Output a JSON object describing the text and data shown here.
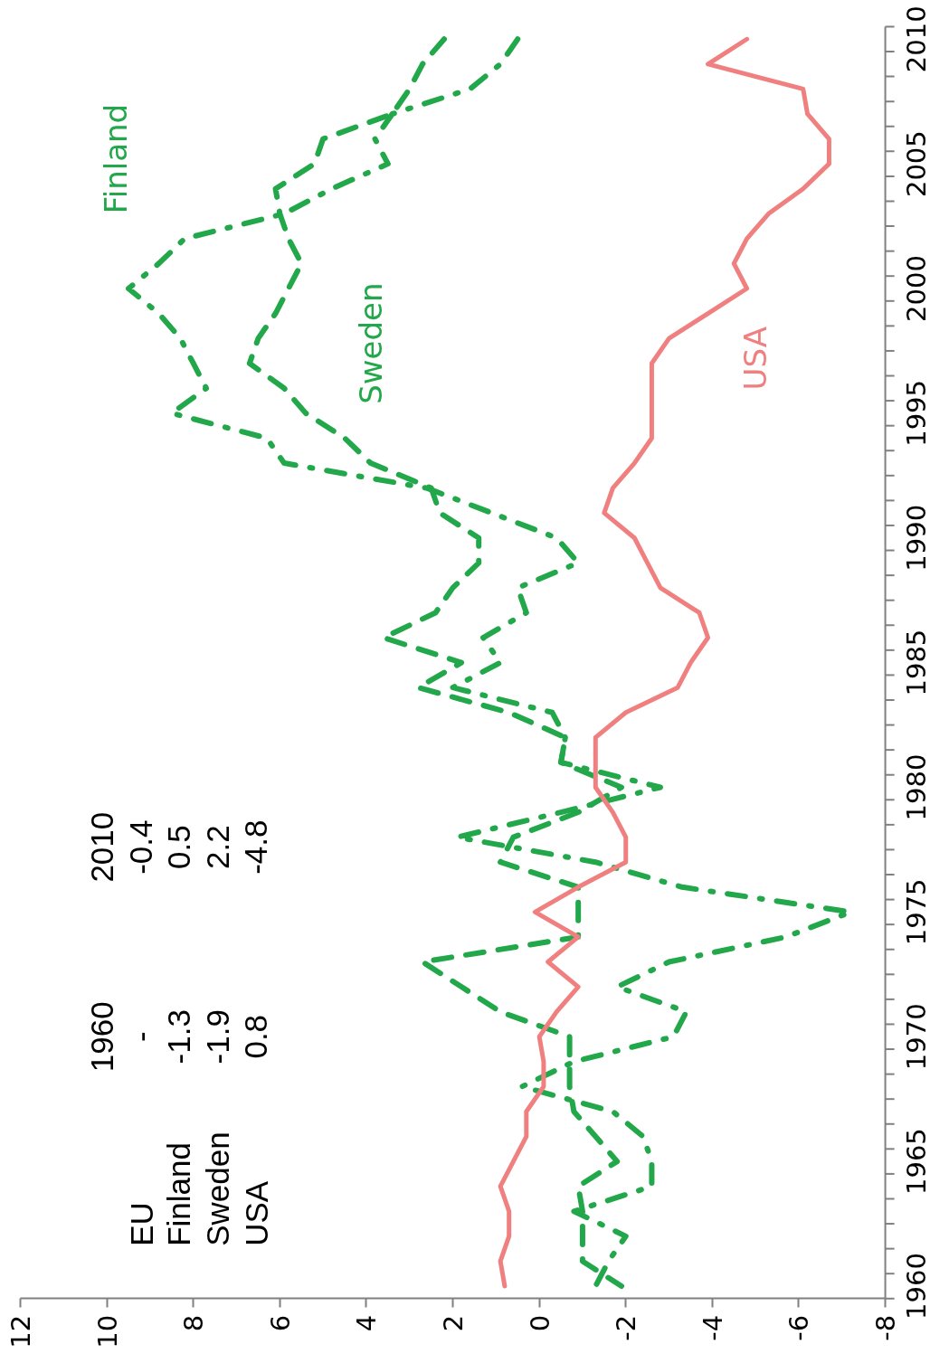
{
  "chart_data": {
    "type": "line",
    "orientation": "horizontal",
    "categories": [
      "2010",
      null,
      null,
      null,
      null,
      "2005",
      null,
      null,
      null,
      null,
      "2000",
      null,
      null,
      null,
      null,
      "1995",
      null,
      null,
      null,
      null,
      "1990",
      null,
      null,
      null,
      null,
      "1985",
      null,
      null,
      null,
      null,
      "1980",
      null,
      null,
      null,
      null,
      "1975",
      null,
      null,
      null,
      null,
      "1970",
      null,
      null,
      null,
      null,
      "1965",
      null,
      null,
      null,
      null,
      "1960"
    ],
    "xlim": [
      12,
      -8
    ],
    "xticks": [
      12,
      10,
      8,
      6,
      4,
      2,
      0,
      -2,
      -4,
      -6,
      -8
    ],
    "series": [
      {
        "name": "Finland",
        "color": "#22a84a",
        "line_style": "dashdot",
        "values": [
          0.5,
          0.9,
          1.6,
          3.4,
          3.8,
          3.5,
          4.8,
          5.9,
          8.2,
          8.8,
          9.5,
          8.8,
          8.3,
          8.0,
          7.7,
          8.5,
          6.3,
          5.9,
          2.6,
          1.1,
          -0.4,
          -0.9,
          0.5,
          0.3,
          1.3,
          0.9,
          2.0,
          -0.3,
          -0.6,
          -0.5,
          -2.8,
          -0.5,
          1.9,
          -1.3,
          -3.3,
          -7.2,
          -5.7,
          -3.0,
          -1.8,
          -3.4,
          -3.1,
          -0.8,
          0.4,
          -1.7,
          -2.4,
          -2.6,
          -2.6,
          -0.8,
          -2.0,
          -1.6,
          -1.3
        ]
      },
      {
        "name": "Sweden",
        "color": "#22a84a",
        "line_style": "dashed",
        "values": [
          2.2,
          2.7,
          3.0,
          3.4,
          5.0,
          5.2,
          6.1,
          6.0,
          5.8,
          5.5,
          5.8,
          6.1,
          6.5,
          6.7,
          5.9,
          5.4,
          4.5,
          3.9,
          2.5,
          2.3,
          1.4,
          1.4,
          2.0,
          2.4,
          3.6,
          1.8,
          2.8,
          0.7,
          -0.6,
          -0.5,
          -1.9,
          -0.9,
          0.6,
          0.9,
          -0.9,
          -0.9,
          -0.9,
          2.7,
          1.8,
          0.9,
          -0.7,
          -0.7,
          -0.7,
          -0.8,
          -1.3,
          -1.8,
          -0.9,
          -1.0,
          -1.0,
          -1.0,
          -1.9
        ]
      },
      {
        "name": "USA",
        "color": "#f08080",
        "line_style": "solid",
        "values": [
          -4.8,
          -3.9,
          -6.1,
          -6.2,
          -6.7,
          -6.7,
          -6.1,
          -5.3,
          -4.8,
          -4.5,
          -4.8,
          -3.9,
          -3.0,
          -2.6,
          -2.6,
          -2.6,
          -2.6,
          -2.2,
          -1.7,
          -1.5,
          -2.2,
          -2.5,
          -2.8,
          -3.7,
          -3.9,
          -3.5,
          -3.2,
          -2.0,
          -1.3,
          -1.3,
          -1.3,
          -1.7,
          -2.0,
          -2.0,
          -0.9,
          0.1,
          -0.9,
          -0.2,
          -0.9,
          -0.4,
          0.0,
          -0.1,
          -0.1,
          0.3,
          0.3,
          0.6,
          0.9,
          0.7,
          0.7,
          0.9,
          0.8
        ]
      }
    ],
    "annotations": [
      "1960",
      "2010",
      "EU",
      "-",
      "-0.4",
      "Finland",
      "-1.3",
      "0.5",
      "Sweden",
      "-1.9",
      "2.2",
      "USA",
      "0.8",
      "-4.8"
    ]
  }
}
